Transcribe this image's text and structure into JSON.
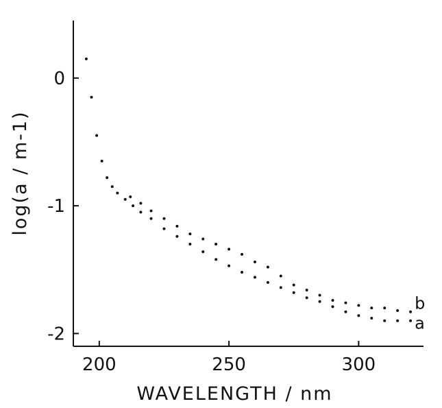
{
  "chart_data": {
    "type": "scatter",
    "xlabel": "WAVELENGTH / nm",
    "ylabel": "log(a / m-1)",
    "xlim": [
      190,
      325
    ],
    "ylim": [
      -2.1,
      0.45
    ],
    "xticks": [
      200,
      250,
      300
    ],
    "yticks": [
      0,
      -1,
      -2
    ],
    "xtick_labels": [
      "200",
      "250",
      "300"
    ],
    "ytick_labels": [
      "0",
      "-1",
      "-2"
    ],
    "grid": false,
    "series": [
      {
        "name": "a",
        "points": [
          [
            195,
            0.15
          ],
          [
            197,
            -0.15
          ],
          [
            199,
            -0.45
          ],
          [
            201,
            -0.65
          ],
          [
            203,
            -0.78
          ],
          [
            205,
            -0.85
          ],
          [
            207,
            -0.9
          ],
          [
            210,
            -0.95
          ],
          [
            213,
            -1.0
          ],
          [
            216,
            -1.05
          ],
          [
            220,
            -1.1
          ],
          [
            225,
            -1.18
          ],
          [
            230,
            -1.24
          ],
          [
            235,
            -1.3
          ],
          [
            240,
            -1.36
          ],
          [
            245,
            -1.42
          ],
          [
            250,
            -1.47
          ],
          [
            255,
            -1.52
          ],
          [
            260,
            -1.56
          ],
          [
            265,
            -1.6
          ],
          [
            270,
            -1.64
          ],
          [
            275,
            -1.68
          ],
          [
            280,
            -1.72
          ],
          [
            285,
            -1.75
          ],
          [
            290,
            -1.79
          ],
          [
            295,
            -1.83
          ],
          [
            300,
            -1.86
          ],
          [
            305,
            -1.88
          ],
          [
            310,
            -1.9
          ],
          [
            315,
            -1.9
          ],
          [
            320,
            -1.9
          ]
        ]
      },
      {
        "name": "b",
        "points": [
          [
            212,
            -0.93
          ],
          [
            216,
            -0.98
          ],
          [
            220,
            -1.04
          ],
          [
            225,
            -1.1
          ],
          [
            230,
            -1.16
          ],
          [
            235,
            -1.22
          ],
          [
            240,
            -1.26
          ],
          [
            245,
            -1.3
          ],
          [
            250,
            -1.34
          ],
          [
            255,
            -1.38
          ],
          [
            260,
            -1.44
          ],
          [
            265,
            -1.48
          ],
          [
            270,
            -1.55
          ],
          [
            275,
            -1.62
          ],
          [
            280,
            -1.66
          ],
          [
            285,
            -1.7
          ],
          [
            290,
            -1.74
          ],
          [
            295,
            -1.76
          ],
          [
            300,
            -1.78
          ],
          [
            305,
            -1.8
          ],
          [
            310,
            -1.8
          ],
          [
            315,
            -1.82
          ],
          [
            320,
            -1.83
          ]
        ]
      }
    ]
  }
}
